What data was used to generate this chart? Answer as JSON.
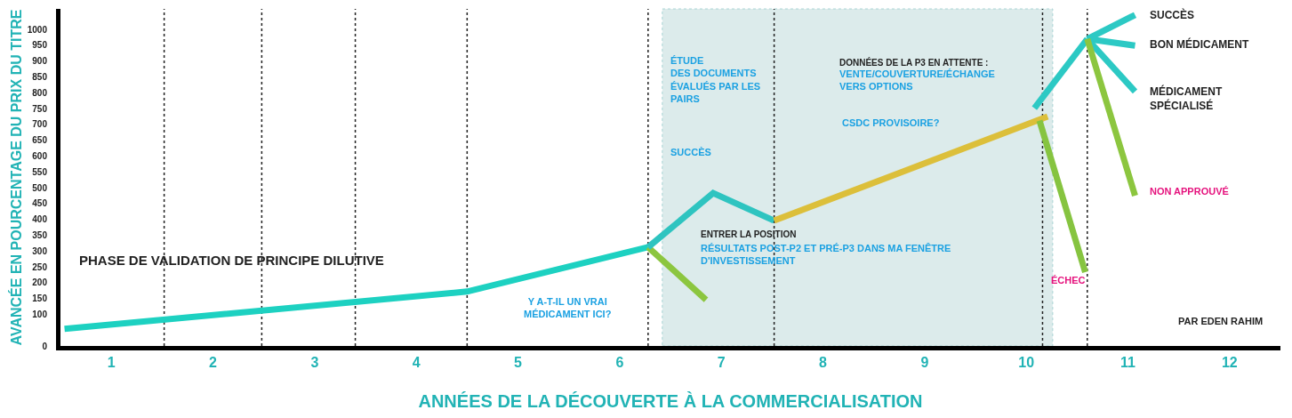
{
  "chart_data": {
    "type": "line",
    "xlabel": "ANNÉES DE LA DÉCOUVERTE À LA COMMERCIALISATION",
    "ylabel": "AVANCÉE EN POURCENTAGE DU PRIX DU TITRE",
    "xlim": [
      0.5,
      12.5
    ],
    "xticks": [
      1,
      2,
      3,
      4,
      5,
      6,
      7,
      8,
      9,
      10,
      11,
      12
    ],
    "ylim": [
      0,
      1065
    ],
    "yticks": [
      0,
      100,
      150,
      200,
      250,
      300,
      350,
      400,
      450,
      500,
      550,
      600,
      650,
      700,
      750,
      800,
      850,
      900,
      950,
      1000
    ],
    "line_style": "solid",
    "series": [
      {
        "color": "#1dd1c1",
        "x": [
          0.54,
          4.5,
          6.28
        ],
        "values": [
          54,
          172,
          312
        ]
      },
      {
        "color": "#8cc63f",
        "x": [
          6.28,
          6.85
        ],
        "values": [
          312,
          146
        ]
      },
      {
        "color": "#2ec4c0",
        "x": [
          6.28,
          6.92,
          7.52
        ],
        "values": [
          312,
          483,
          396
        ]
      },
      {
        "color": "#dcbf3a",
        "x": [
          7.52,
          10.21
        ],
        "values": [
          396,
          725
        ]
      },
      {
        "color": "#86c440",
        "x": [
          10.13,
          10.58
        ],
        "values": [
          712,
          233
        ]
      },
      {
        "color": "#2cc9c4",
        "x": [
          10.08,
          10.6
        ],
        "values": [
          751,
          970
        ]
      },
      {
        "color": "#2cc9c4",
        "x": [
          10.6,
          11.07
        ],
        "values": [
          970,
          1046
        ]
      },
      {
        "color": "#2cc9c4",
        "x": [
          10.6,
          11.07
        ],
        "values": [
          970,
          949
        ]
      },
      {
        "color": "#2cc9c4",
        "x": [
          10.6,
          11.07
        ],
        "values": [
          970,
          804
        ]
      },
      {
        "color": "#8cc63f",
        "x": [
          10.6,
          11.07
        ],
        "values": [
          970,
          475
        ]
      }
    ],
    "ref_lines": [
      {
        "axis": "x",
        "value": 1.52,
        "color": "#222222",
        "line_style": "dotted"
      },
      {
        "axis": "x",
        "value": 2.48,
        "color": "#222222",
        "line_style": "dotted"
      },
      {
        "axis": "x",
        "value": 3.4,
        "color": "#222222",
        "line_style": "dotted"
      },
      {
        "axis": "x",
        "value": 4.5,
        "color": "#222222",
        "line_style": "dotted"
      },
      {
        "axis": "x",
        "value": 6.28,
        "color": "#222222",
        "line_style": "dotted"
      },
      {
        "axis": "x",
        "value": 7.52,
        "color": "#222222",
        "line_style": "dotted"
      },
      {
        "axis": "x",
        "value": 10.16,
        "color": "#222222",
        "line_style": "dotted"
      },
      {
        "axis": "x",
        "value": 10.6,
        "color": "#222222",
        "line_style": "dotted"
      }
    ],
    "bands": [
      {
        "axis": "x",
        "from": 6.42,
        "to": 10.26,
        "color": "#dcebeb"
      }
    ],
    "annotations": [
      "PHASE DE VALIDATION DE PRINCIPE DILUTIVE",
      "Y A-T-IL UN VRAI\nMÉDICAMENT ICI?",
      "ÉTUDE\nDES DOCUMENTS\nÉVALUÉS PAR LES\nPAIRS",
      "SUCCÈS",
      "ENTRER LA POSITION",
      "RÉSULTATS POST-P2 ET PRÉ-P3 DANS MA FENÊTRE\nD'INVESTISSEMENT",
      "DONNÉES DE LA P3 EN ATTENTE :",
      "VENTE/COUVERTURE/ÉCHANGE\nVERS OPTIONS",
      "CSDC PROVISOIRE?",
      "ÉCHEC",
      "SUCCÈS",
      "BON MÉDICAMENT",
      "MÉDICAMENT\nSPÉCIALISÉ",
      "NON APPROUVÉ",
      "PAR EDEN RAHIM"
    ]
  }
}
